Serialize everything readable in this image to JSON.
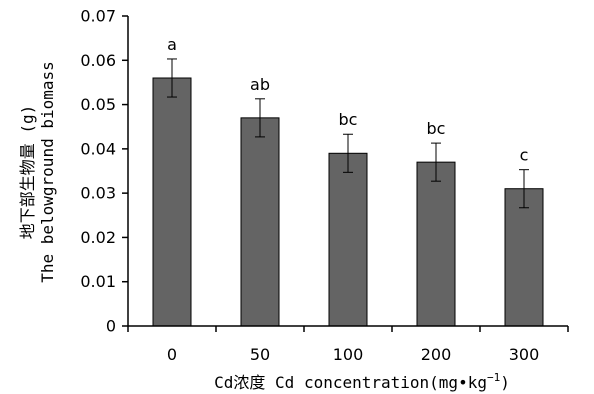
{
  "chart_data": {
    "type": "bar",
    "categories": [
      "0",
      "50",
      "100",
      "200",
      "300"
    ],
    "values": [
      0.056,
      0.047,
      0.039,
      0.037,
      0.031
    ],
    "errors": [
      0.0043,
      0.0043,
      0.0043,
      0.0043,
      0.0043
    ],
    "significance_labels": [
      "a",
      "ab",
      "bc",
      "bc",
      "c"
    ],
    "xlabel_main": "Cd浓度 Cd concentration(mg•kg",
    "xlabel_superscript": "−1",
    "xlabel_close": ")",
    "ylabel_line1": "地下部生物量 (g)",
    "ylabel_line2": "The belowground biomass",
    "ylim": [
      0,
      0.07
    ],
    "yticks": [
      "0",
      "0.01",
      "0.02",
      "0.03",
      "0.04",
      "0.05",
      "0.06",
      "0.07"
    ],
    "grid": false,
    "bar_color": "#646464",
    "bar_edge_color": "#000000"
  }
}
